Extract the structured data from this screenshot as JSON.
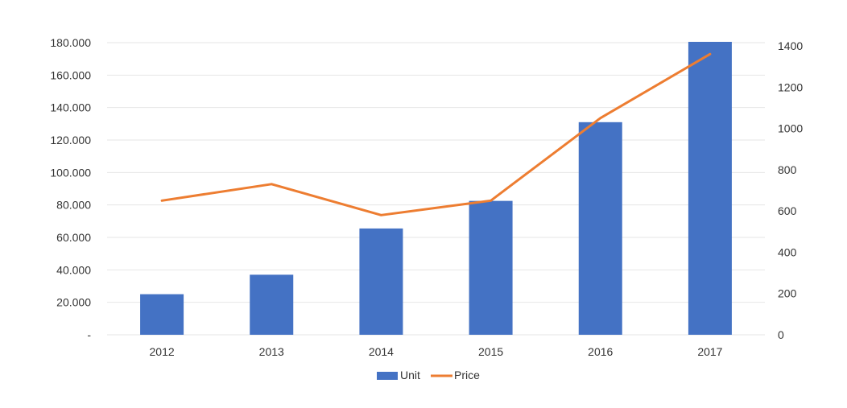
{
  "chart_data": {
    "type": "bar",
    "title": "",
    "xlabel": "",
    "ylabel": "",
    "categories": [
      "2012",
      "2013",
      "2014",
      "2015",
      "2016",
      "2017"
    ],
    "series": [
      {
        "name": "Unit",
        "type": "bar",
        "axis": "left",
        "color": "#4472c4",
        "values": [
          25000,
          37000,
          65500,
          82500,
          131000,
          180500
        ]
      },
      {
        "name": "Price",
        "type": "line",
        "axis": "right",
        "color": "#ed7d31",
        "values": [
          650,
          730,
          580,
          650,
          1050,
          1360
        ]
      }
    ],
    "ylim": [
      0,
      180000
    ],
    "y2lim": [
      0,
      1400
    ],
    "y_ticks": [
      "-",
      "20.000",
      "40.000",
      "60.000",
      "80.000",
      "100.000",
      "120.000",
      "140.000",
      "160.000",
      "180.000"
    ],
    "y2_ticks": [
      "0",
      "200",
      "400",
      "600",
      "800",
      "1000",
      "1200",
      "1400"
    ],
    "grid": true,
    "legend_position": "bottom"
  }
}
